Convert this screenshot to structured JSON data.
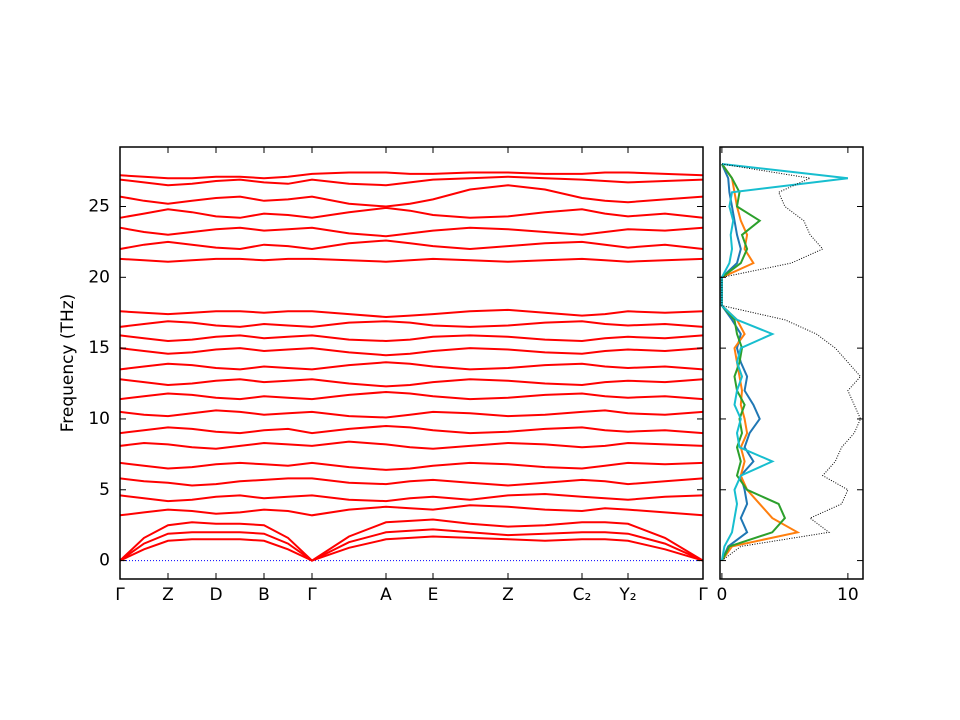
{
  "chart_data": [
    {
      "type": "bands",
      "ylabel": "Frequency (THz)",
      "x": [
        0,
        24,
        48,
        72,
        96,
        120,
        144,
        168,
        192,
        229,
        266,
        290,
        313,
        350,
        388,
        425,
        462,
        485,
        508,
        545,
        583
      ],
      "xlim": [
        0,
        583
      ],
      "xticks": [
        {
          "value": 0,
          "label": "Γ"
        },
        {
          "value": 48,
          "label": "Z"
        },
        {
          "value": 96,
          "label": "D"
        },
        {
          "value": 144,
          "label": "B"
        },
        {
          "value": 192,
          "label": "Γ"
        },
        {
          "value": 266,
          "label": "A"
        },
        {
          "value": 313,
          "label": "E"
        },
        {
          "value": 388,
          "label": "Z"
        },
        {
          "value": 462,
          "label": "C₂"
        },
        {
          "value": 508,
          "label": "Y₂"
        },
        {
          "value": 583,
          "label": "Γ"
        }
      ],
      "ylim": [
        -1.3,
        29.2
      ],
      "yticks": [
        0,
        5,
        10,
        15,
        20,
        25
      ],
      "color": "#ff0000",
      "reference_line": {
        "value": 0,
        "color": "#0000ff"
      },
      "series": [
        {
          "values": [
            0,
            0.8,
            1.4,
            1.5,
            1.5,
            1.5,
            1.4,
            0.8,
            0,
            0.9,
            1.5,
            1.6,
            1.7,
            1.6,
            1.5,
            1.4,
            1.5,
            1.5,
            1.4,
            0.8,
            0
          ]
        },
        {
          "values": [
            0,
            1.2,
            1.9,
            2.0,
            2.0,
            2.0,
            1.9,
            1.2,
            0,
            1.3,
            2.0,
            2.1,
            2.2,
            2.0,
            1.8,
            1.9,
            2.0,
            2.0,
            1.9,
            1.2,
            0
          ]
        },
        {
          "values": [
            0,
            1.6,
            2.5,
            2.7,
            2.6,
            2.6,
            2.5,
            1.6,
            0,
            1.7,
            2.7,
            2.8,
            2.9,
            2.6,
            2.4,
            2.5,
            2.7,
            2.7,
            2.6,
            1.6,
            0
          ]
        },
        {
          "values": [
            3.2,
            3.4,
            3.6,
            3.5,
            3.3,
            3.4,
            3.6,
            3.5,
            3.2,
            3.6,
            3.8,
            3.7,
            3.6,
            3.9,
            3.8,
            3.6,
            3.5,
            3.7,
            3.6,
            3.4,
            3.2
          ]
        },
        {
          "values": [
            4.6,
            4.4,
            4.2,
            4.3,
            4.5,
            4.6,
            4.4,
            4.5,
            4.6,
            4.3,
            4.2,
            4.4,
            4.5,
            4.3,
            4.6,
            4.7,
            4.5,
            4.4,
            4.3,
            4.5,
            4.6
          ]
        },
        {
          "values": [
            5.8,
            5.6,
            5.5,
            5.3,
            5.4,
            5.6,
            5.7,
            5.8,
            5.8,
            5.5,
            5.4,
            5.6,
            5.7,
            5.5,
            5.3,
            5.5,
            5.7,
            5.6,
            5.4,
            5.6,
            5.8
          ]
        },
        {
          "values": [
            6.9,
            6.7,
            6.5,
            6.6,
            6.8,
            6.9,
            6.8,
            6.7,
            6.9,
            6.6,
            6.4,
            6.5,
            6.7,
            6.9,
            6.8,
            6.6,
            6.5,
            6.7,
            6.9,
            6.8,
            6.9
          ]
        },
        {
          "values": [
            8.1,
            8.3,
            8.2,
            8.0,
            7.9,
            8.1,
            8.3,
            8.2,
            8.1,
            8.4,
            8.2,
            8.0,
            7.9,
            8.1,
            8.3,
            8.2,
            8.0,
            8.1,
            8.3,
            8.2,
            8.1
          ]
        },
        {
          "values": [
            9.0,
            9.2,
            9.4,
            9.3,
            9.1,
            9.0,
            9.2,
            9.3,
            9.0,
            9.3,
            9.5,
            9.4,
            9.2,
            9.0,
            9.1,
            9.3,
            9.4,
            9.2,
            9.1,
            9.2,
            9.0
          ]
        },
        {
          "values": [
            10.5,
            10.3,
            10.2,
            10.4,
            10.6,
            10.5,
            10.3,
            10.4,
            10.5,
            10.2,
            10.1,
            10.3,
            10.5,
            10.4,
            10.2,
            10.3,
            10.5,
            10.6,
            10.4,
            10.3,
            10.5
          ]
        },
        {
          "values": [
            11.4,
            11.6,
            11.8,
            11.7,
            11.5,
            11.4,
            11.6,
            11.5,
            11.4,
            11.7,
            11.9,
            11.8,
            11.6,
            11.4,
            11.5,
            11.7,
            11.8,
            11.6,
            11.5,
            11.6,
            11.4
          ]
        },
        {
          "values": [
            12.8,
            12.6,
            12.4,
            12.5,
            12.7,
            12.8,
            12.6,
            12.7,
            12.8,
            12.5,
            12.3,
            12.4,
            12.6,
            12.8,
            12.7,
            12.5,
            12.4,
            12.6,
            12.7,
            12.6,
            12.8
          ]
        },
        {
          "values": [
            13.5,
            13.7,
            13.9,
            13.8,
            13.6,
            13.5,
            13.7,
            13.6,
            13.5,
            13.8,
            14.0,
            13.9,
            13.7,
            13.5,
            13.6,
            13.8,
            13.9,
            13.7,
            13.6,
            13.7,
            13.5
          ]
        },
        {
          "values": [
            15.0,
            14.8,
            14.6,
            14.7,
            14.9,
            15.0,
            14.8,
            14.9,
            15.0,
            14.7,
            14.5,
            14.6,
            14.8,
            15.0,
            14.9,
            14.7,
            14.6,
            14.8,
            14.9,
            14.8,
            15.0
          ]
        },
        {
          "values": [
            15.9,
            15.7,
            15.5,
            15.6,
            15.8,
            15.9,
            15.7,
            15.8,
            15.9,
            15.6,
            15.5,
            15.6,
            15.8,
            15.9,
            15.8,
            15.6,
            15.5,
            15.7,
            15.8,
            15.7,
            15.9
          ]
        },
        {
          "values": [
            16.5,
            16.7,
            16.9,
            16.8,
            16.6,
            16.5,
            16.7,
            16.6,
            16.5,
            16.8,
            16.9,
            16.8,
            16.6,
            16.5,
            16.6,
            16.8,
            16.9,
            16.7,
            16.6,
            16.7,
            16.5
          ]
        },
        {
          "values": [
            17.6,
            17.5,
            17.4,
            17.5,
            17.6,
            17.6,
            17.5,
            17.6,
            17.6,
            17.4,
            17.2,
            17.3,
            17.4,
            17.6,
            17.7,
            17.5,
            17.3,
            17.4,
            17.6,
            17.5,
            17.6
          ]
        },
        {
          "values": [
            21.3,
            21.2,
            21.1,
            21.2,
            21.3,
            21.3,
            21.2,
            21.3,
            21.3,
            21.2,
            21.1,
            21.2,
            21.3,
            21.2,
            21.1,
            21.2,
            21.3,
            21.2,
            21.1,
            21.2,
            21.3
          ]
        },
        {
          "values": [
            22.0,
            22.3,
            22.5,
            22.3,
            22.1,
            22.0,
            22.3,
            22.2,
            22.0,
            22.4,
            22.6,
            22.4,
            22.2,
            22.0,
            22.2,
            22.4,
            22.5,
            22.3,
            22.1,
            22.3,
            22.0
          ]
        },
        {
          "values": [
            23.5,
            23.2,
            23.0,
            23.2,
            23.4,
            23.5,
            23.3,
            23.4,
            23.5,
            23.1,
            22.9,
            23.1,
            23.3,
            23.5,
            23.4,
            23.2,
            23.0,
            23.2,
            23.4,
            23.3,
            23.5
          ]
        },
        {
          "values": [
            24.2,
            24.5,
            24.8,
            24.6,
            24.3,
            24.2,
            24.5,
            24.4,
            24.2,
            24.6,
            24.9,
            24.7,
            24.4,
            24.2,
            24.3,
            24.6,
            24.8,
            24.5,
            24.3,
            24.5,
            24.2
          ]
        },
        {
          "values": [
            25.7,
            25.4,
            25.2,
            25.4,
            25.6,
            25.7,
            25.4,
            25.5,
            25.7,
            25.2,
            25.0,
            25.2,
            25.5,
            26.2,
            26.5,
            26.2,
            25.6,
            25.4,
            25.3,
            25.5,
            25.7
          ]
        },
        {
          "values": [
            26.9,
            26.7,
            26.5,
            26.6,
            26.8,
            26.9,
            26.7,
            26.6,
            26.9,
            26.6,
            26.5,
            26.7,
            26.9,
            27.0,
            27.1,
            27.0,
            26.9,
            26.8,
            26.7,
            26.8,
            26.9
          ]
        },
        {
          "values": [
            27.2,
            27.1,
            27.0,
            27.0,
            27.1,
            27.1,
            27.0,
            27.1,
            27.3,
            27.4,
            27.4,
            27.3,
            27.3,
            27.4,
            27.4,
            27.3,
            27.3,
            27.4,
            27.4,
            27.3,
            27.2
          ]
        }
      ]
    },
    {
      "type": "dos",
      "frequencies": [
        0,
        1,
        2,
        3,
        4,
        5,
        6,
        7,
        8,
        9,
        10,
        11,
        12,
        13,
        14,
        15,
        16,
        17,
        18,
        19,
        20,
        21,
        22,
        23,
        24,
        25,
        26,
        27,
        28
      ],
      "xlim": [
        -0.15,
        11.2
      ],
      "xticks": [
        0,
        10
      ],
      "ylim": [
        -1.3,
        29.2
      ],
      "yticks": [
        0,
        5,
        10,
        15,
        20,
        25
      ],
      "total": {
        "color": "#000000",
        "values": [
          0,
          1.5,
          8.5,
          7,
          9.5,
          10,
          8,
          9,
          9.5,
          10.5,
          11,
          10.5,
          10,
          11,
          10,
          9,
          7.5,
          5,
          0,
          0,
          0,
          5.5,
          8,
          7,
          6.5,
          5,
          4.5,
          7,
          0
        ]
      },
      "series": [
        {
          "color": "#1f77b4",
          "values": [
            0,
            0.5,
            2,
            1.5,
            2,
            1.8,
            1.5,
            2.5,
            1.8,
            2.2,
            3,
            2.5,
            1.8,
            2,
            1.5,
            1.2,
            1.5,
            0.8,
            0,
            0,
            0,
            1.2,
            1.5,
            1.2,
            1,
            0.8,
            0.6,
            0.5,
            0
          ]
        },
        {
          "color": "#ff7f0e",
          "values": [
            0,
            0.8,
            6,
            4,
            3,
            2,
            1.5,
            1.8,
            1.5,
            2,
            1.8,
            1.5,
            1.6,
            1.4,
            1.2,
            1,
            1.8,
            1.2,
            0,
            0,
            0,
            2.5,
            1.8,
            2,
            1.5,
            1.2,
            1,
            0.8,
            0
          ]
        },
        {
          "color": "#2ca02c",
          "values": [
            0,
            0.6,
            4,
            5,
            4.5,
            2,
            1.2,
            1.5,
            1.2,
            1.6,
            1.4,
            1.8,
            1.2,
            1,
            1.4,
            1.6,
            1.2,
            1,
            0,
            0,
            0,
            1.5,
            2,
            1.6,
            3,
            1.2,
            1.4,
            0.8,
            0
          ]
        },
        {
          "color": "#17becf",
          "values": [
            0,
            0.2,
            0.8,
            1,
            1.2,
            1,
            1.5,
            4,
            1.4,
            1.2,
            1.5,
            1,
            1.2,
            1.6,
            1.2,
            1.5,
            4,
            1.2,
            0,
            0,
            0,
            0.6,
            0.8,
            0.7,
            0.9,
            0.6,
            0.8,
            10,
            0
          ]
        }
      ]
    }
  ]
}
